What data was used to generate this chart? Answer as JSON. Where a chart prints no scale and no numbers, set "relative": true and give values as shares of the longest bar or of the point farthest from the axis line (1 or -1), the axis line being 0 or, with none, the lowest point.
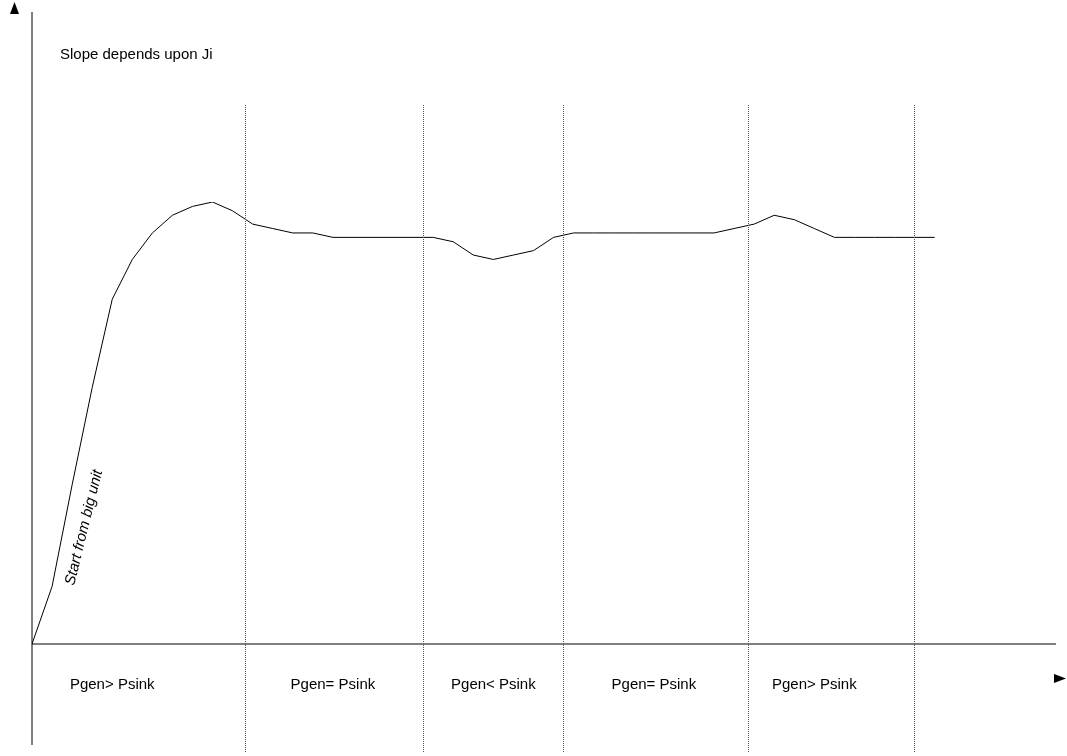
{
  "chart_data": {
    "type": "line",
    "relative": true,
    "tick_labels": "x",
    "marker": "none",
    "color": "#000000",
    "categories": [
      null,
      null,
      null,
      null,
      "Pgen> Psink",
      null,
      null,
      null,
      null,
      null,
      null,
      null,
      null,
      null,
      null,
      "Pgen= Psink",
      null,
      null,
      null,
      null,
      null,
      null,
      null,
      "Pgen< Psink",
      null,
      null,
      null,
      null,
      null,
      null,
      null,
      "Pgen= Psink",
      null,
      null,
      null,
      null,
      null,
      null,
      null,
      "Pgen> Psink",
      null,
      null,
      null,
      null,
      null,
      null,
      null,
      null,
      null,
      null,
      null
    ],
    "values": [
      0,
      0.13,
      0.36,
      0.58,
      0.78,
      0.87,
      0.93,
      0.97,
      0.99,
      1,
      0.98,
      0.95,
      0.94,
      0.93,
      0.93,
      0.92,
      0.92,
      0.92,
      0.92,
      0.92,
      0.92,
      0.91,
      0.88,
      0.87,
      0.88,
      0.89,
      0.92,
      0.93,
      0.93,
      0.93,
      0.93,
      0.93,
      0.93,
      0.93,
      0.93,
      0.94,
      0.95,
      0.97,
      0.96,
      0.94,
      0.92,
      0.92,
      0.92,
      0.92,
      0.92,
      0.92,
      null,
      null,
      null,
      null,
      null
    ],
    "annotations": [
      "Slope depends upon Ji",
      "Start from big unit"
    ]
  }
}
